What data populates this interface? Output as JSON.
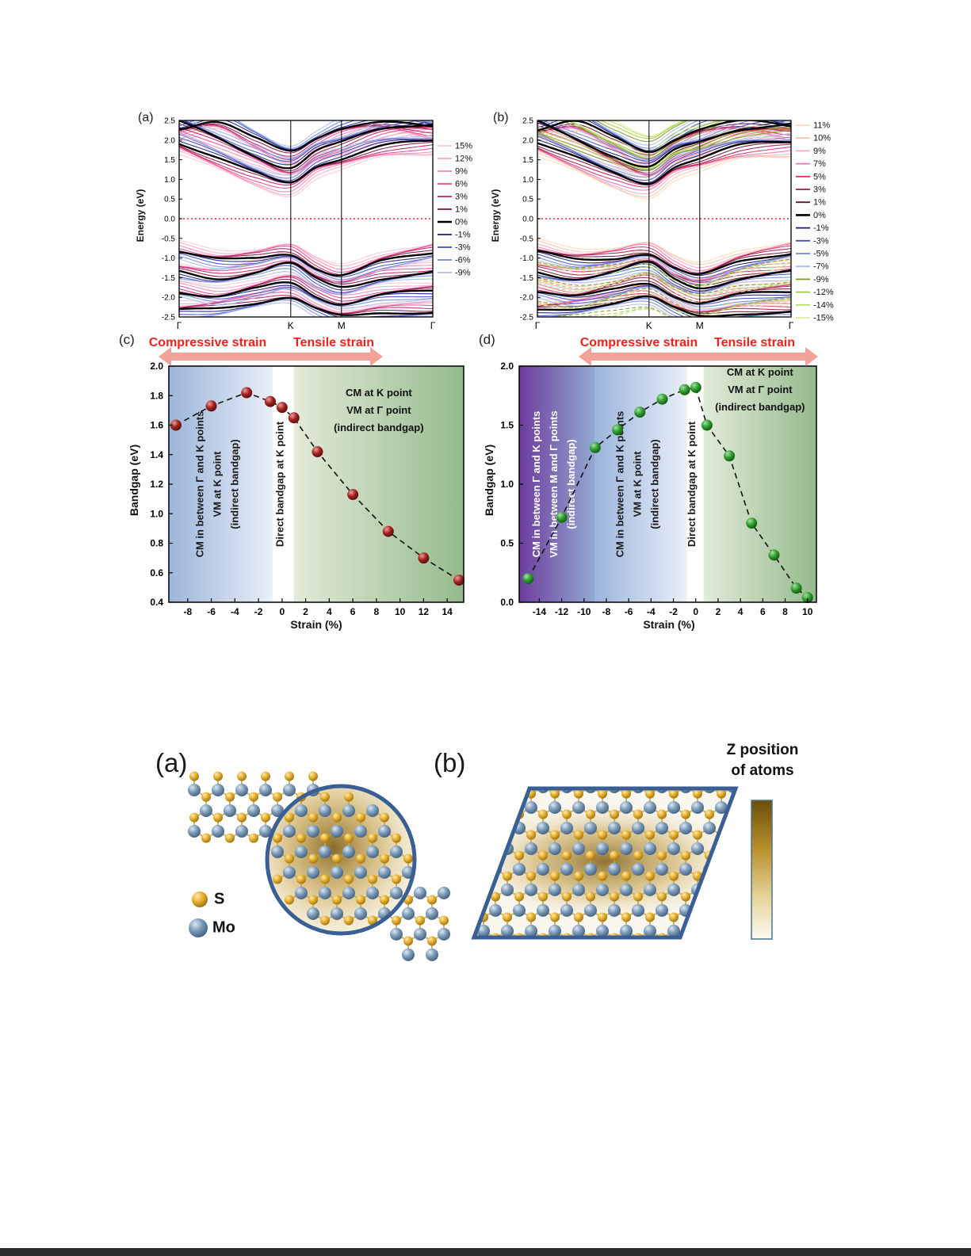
{
  "page": {
    "background": "#ffffff"
  },
  "band_panels": [
    {
      "id": "a",
      "panel_label": "(a)",
      "ylabel": "Energy (eV)",
      "xlabel_ticks": [
        "Γ",
        "K",
        "M",
        "Γ"
      ],
      "ytick_labels": [
        "2.5",
        "2.0",
        "1.5",
        "1.0",
        "0.5",
        "0.0",
        "-0.5",
        "-1.0",
        "-1.5",
        "-2.0",
        "-2.5"
      ],
      "fermi_energy": 0.0,
      "fermi_color": "#ff1a1a",
      "legend": [
        {
          "label": "15%",
          "color": "#fac8d8"
        },
        {
          "label": "12%",
          "color": "#f8aac4"
        },
        {
          "label": "9%",
          "color": "#f687b0"
        },
        {
          "label": "6%",
          "color": "#ee4492"
        },
        {
          "label": "3%",
          "color": "#c01e62"
        },
        {
          "label": "1%",
          "color": "#861041"
        },
        {
          "label": "0%",
          "color": "#000000"
        },
        {
          "label": "-1%",
          "color": "#1b1b8e"
        },
        {
          "label": "-3%",
          "color": "#3c50c4"
        },
        {
          "label": "-6%",
          "color": "#7488d8"
        },
        {
          "label": "-9%",
          "color": "#a9bbec"
        }
      ]
    },
    {
      "id": "b",
      "panel_label": "(b)",
      "ylabel": "Energy (eV)",
      "xlabel_ticks": [
        "Γ",
        "K",
        "M",
        "Γ"
      ],
      "ytick_labels": [
        "2.5",
        "2.0",
        "1.5",
        "1.0",
        "0.5",
        "0.0",
        "-0.5",
        "-1.0",
        "-1.5",
        "-2.0",
        "-2.5"
      ],
      "fermi_energy": 0.0,
      "fermi_color": "#ff1a1a",
      "legend": [
        {
          "label": "11%",
          "color": "#fbd9b9"
        },
        {
          "label": "10%",
          "color": "#fac3ab"
        },
        {
          "label": "9%",
          "color": "#f8a8c2"
        },
        {
          "label": "7%",
          "color": "#f171a8"
        },
        {
          "label": "5%",
          "color": "#dd3070"
        },
        {
          "label": "3%",
          "color": "#a81748"
        },
        {
          "label": "1%",
          "color": "#701032"
        },
        {
          "label": "0%",
          "color": "#000000"
        },
        {
          "label": "-1%",
          "color": "#17177e"
        },
        {
          "label": "-3%",
          "color": "#3c50c4"
        },
        {
          "label": "-5%",
          "color": "#7488d8"
        },
        {
          "label": "-7%",
          "color": "#a9bbec"
        },
        {
          "label": "-9%",
          "color": "#7c9a28"
        },
        {
          "label": "-12%",
          "color": "#9ccc3a"
        },
        {
          "label": "-14%",
          "color": "#b9e06c"
        },
        {
          "label": "-15%",
          "color": "#d6ef9e"
        }
      ]
    }
  ],
  "chart_data": [
    {
      "type": "scatter",
      "panel_label": "(c)",
      "header": {
        "compressive": "Compressive strain",
        "tensile": "Tensile strain"
      },
      "xlabel": "Strain (%)",
      "ylabel": "Bandgap (eV)",
      "x": [
        -9,
        -6,
        -3,
        -1,
        0,
        1,
        3,
        6,
        9,
        12,
        15
      ],
      "y": [
        1.6,
        1.73,
        1.82,
        1.76,
        1.72,
        1.65,
        1.42,
        1.13,
        0.88,
        0.7,
        0.55
      ],
      "xlim": [
        -9.6,
        15.4
      ],
      "ylim": [
        0.4,
        2.0
      ],
      "xticks": [
        -8,
        -6,
        -4,
        -2,
        0,
        2,
        4,
        6,
        8,
        10,
        12,
        14
      ],
      "yticks": [
        "2.0",
        "1.8",
        "1.6",
        "1.4",
        "1.2",
        "1.0",
        "0.8",
        "0.6",
        "0.4"
      ],
      "marker_gradient": [
        "#eb9f9f",
        "#a32222",
        "#4a0808"
      ],
      "regions": [
        {
          "kind": "blue",
          "from": -9.6,
          "to": -0.8,
          "label_orientation": "vertical",
          "text_color": "#1a1a1a",
          "lines": [
            "CM in between Γ and K points",
            "VM at K point",
            "(indirect bandgap)"
          ]
        },
        {
          "kind": "white",
          "from": -0.8,
          "to": 1.0,
          "label_orientation": "vertical",
          "text_color": "#1a1a1a",
          "lines": [
            "Direct bandgap at K point"
          ]
        },
        {
          "kind": "green",
          "from": 1.0,
          "to": 15.4,
          "label_orientation": "horizontal",
          "text_color": "#111111",
          "lines": [
            "CM at K point",
            "VM at Γ point",
            "(indirect bandgap)"
          ]
        }
      ]
    },
    {
      "type": "scatter",
      "panel_label": "(d)",
      "header": {
        "compressive": "Compressive strain",
        "tensile": "Tensile strain"
      },
      "xlabel": "Strain (%)",
      "ylabel": "Bandgap (eV)",
      "x": [
        -15,
        -12,
        -9,
        -7,
        -5,
        -3,
        -1,
        0,
        1,
        3,
        5,
        7,
        9,
        10
      ],
      "y": [
        0.2,
        0.72,
        1.31,
        1.46,
        1.61,
        1.72,
        1.8,
        1.82,
        1.5,
        1.24,
        0.67,
        0.4,
        0.12,
        0.04
      ],
      "xlim": [
        -15.8,
        10.8
      ],
      "ylim": [
        0.0,
        2.0
      ],
      "xticks": [
        -14,
        -12,
        -10,
        -8,
        -6,
        -4,
        -2,
        0,
        2,
        4,
        6,
        8,
        10
      ],
      "yticks": [
        "2.0",
        "1.5",
        "1.0",
        "0.5",
        "0.0"
      ],
      "marker_gradient": [
        "#a5e2a5",
        "#2f9c2f",
        "#0b4d0b"
      ],
      "regions": [
        {
          "kind": "purple",
          "from": -15.8,
          "to": -9.0,
          "label_orientation": "vertical",
          "text_color": "#ffffff",
          "lines": [
            "CM in between Γ and K points",
            "VM in between M and Γ points",
            "(indirect bandgap)"
          ]
        },
        {
          "kind": "blue",
          "from": -9.0,
          "to": -0.8,
          "label_orientation": "vertical",
          "text_color": "#1a1a1a",
          "lines": [
            "CM in between Γ and K points",
            "VM at K point",
            "(indirect bandgap)"
          ]
        },
        {
          "kind": "white",
          "from": -0.8,
          "to": 0.7,
          "label_orientation": "vertical",
          "text_color": "#1a1a1a",
          "lines": [
            "Direct bandgap at K point"
          ]
        },
        {
          "kind": "green",
          "from": 0.7,
          "to": 10.8,
          "label_orientation": "horizontal",
          "text_color": "#111111",
          "lines": [
            "CM at K point",
            "VM at Γ point",
            "(indirect bandgap)"
          ]
        }
      ]
    }
  ],
  "structure_figure": {
    "panel_a_label": "(a)",
    "panel_b_label": "(b)",
    "atom_legend": [
      {
        "symbol": "S",
        "color": "#d9a520"
      },
      {
        "symbol": "Mo",
        "color": "#5b7b9c"
      }
    ],
    "colorbar": {
      "title_line1": "Z position",
      "title_line2": "of atoms"
    }
  }
}
